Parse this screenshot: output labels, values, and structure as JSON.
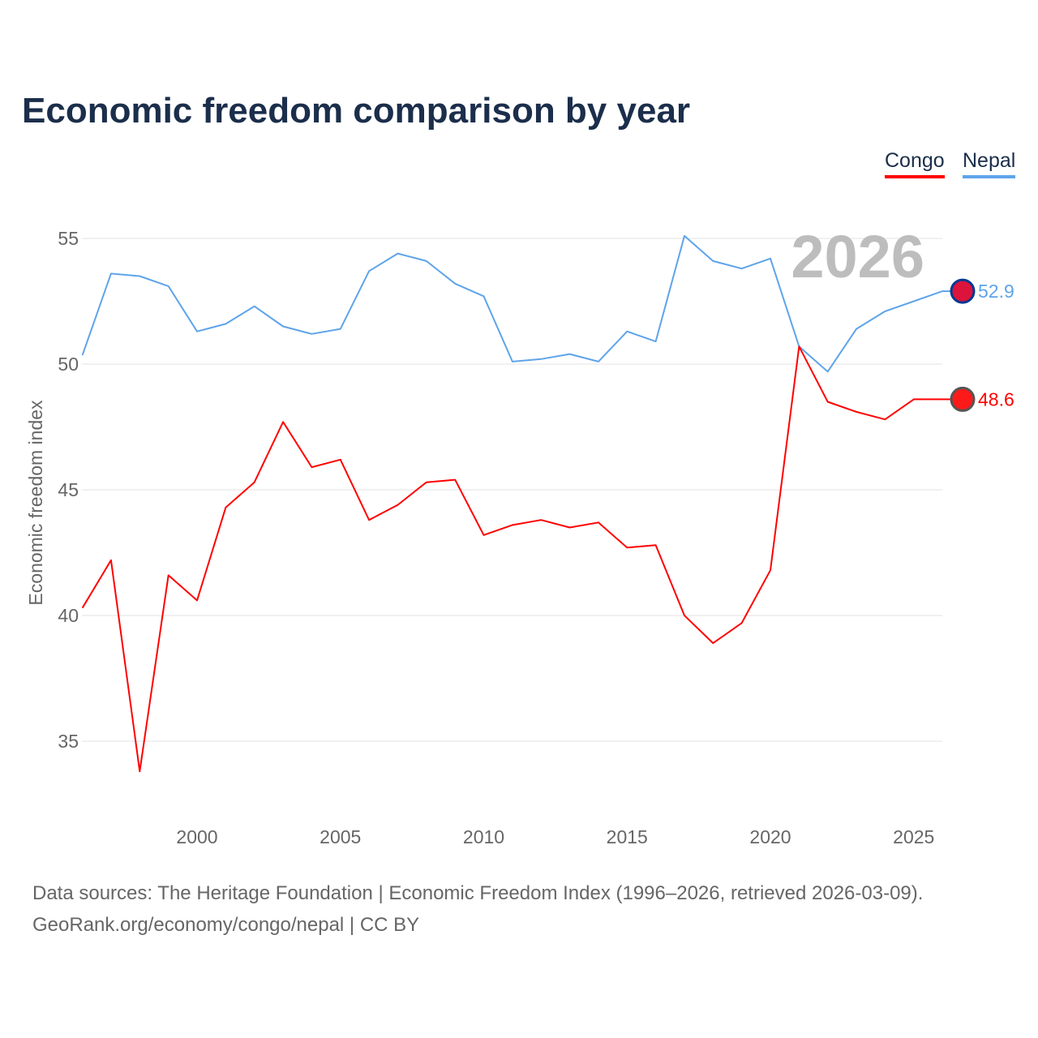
{
  "title": "Economic freedom comparison by year",
  "legend": [
    {
      "label": "Congo",
      "color": "#ff0000"
    },
    {
      "label": "Nepal",
      "color": "#5ea4ea"
    }
  ],
  "source_line1": "Data sources: The Heritage Foundation | Economic Freedom Index (1996–2026, retrieved 2026-03-09).",
  "source_line2": "GeoRank.org/economy/congo/nepal | CC BY",
  "chart_data": {
    "type": "line",
    "title": "Economic freedom comparison by year",
    "ylabel": "Economic freedom index",
    "xlabel": "",
    "year_watermark": "2026",
    "xlim": [
      1996,
      2026
    ],
    "ylim": [
      32,
      57.5
    ],
    "xticks": [
      2000,
      2005,
      2010,
      2015,
      2020,
      2025
    ],
    "yticks": [
      35,
      40,
      45,
      50,
      55
    ],
    "grid": true,
    "legend_position": "top-right",
    "x": [
      1996,
      1997,
      1998,
      1999,
      2000,
      2001,
      2002,
      2003,
      2004,
      2005,
      2006,
      2007,
      2008,
      2009,
      2010,
      2011,
      2012,
      2013,
      2014,
      2015,
      2016,
      2017,
      2018,
      2019,
      2020,
      2021,
      2022,
      2023,
      2024,
      2025,
      2026
    ],
    "series": [
      {
        "name": "Nepal",
        "color": "#5ea4ea",
        "end_label": "52.9",
        "values": [
          50.35,
          53.6,
          53.5,
          53.1,
          51.3,
          51.6,
          52.3,
          51.5,
          51.2,
          51.4,
          53.7,
          54.4,
          54.1,
          53.2,
          52.7,
          50.1,
          50.2,
          50.4,
          50.1,
          51.3,
          50.9,
          55.1,
          54.1,
          53.8,
          54.2,
          50.7,
          49.7,
          51.4,
          52.1,
          52.5,
          52.9
        ]
      },
      {
        "name": "Congo",
        "color": "#ff0000",
        "end_label": "48.6",
        "values": [
          40.3,
          42.2,
          33.8,
          41.6,
          40.6,
          44.3,
          45.3,
          47.7,
          45.9,
          46.2,
          43.8,
          44.4,
          45.3,
          45.4,
          43.2,
          43.6,
          43.8,
          43.5,
          43.7,
          42.7,
          42.8,
          40.0,
          38.9,
          39.7,
          41.8,
          50.7,
          48.5,
          48.1,
          47.8,
          48.6,
          48.6
        ]
      }
    ]
  }
}
